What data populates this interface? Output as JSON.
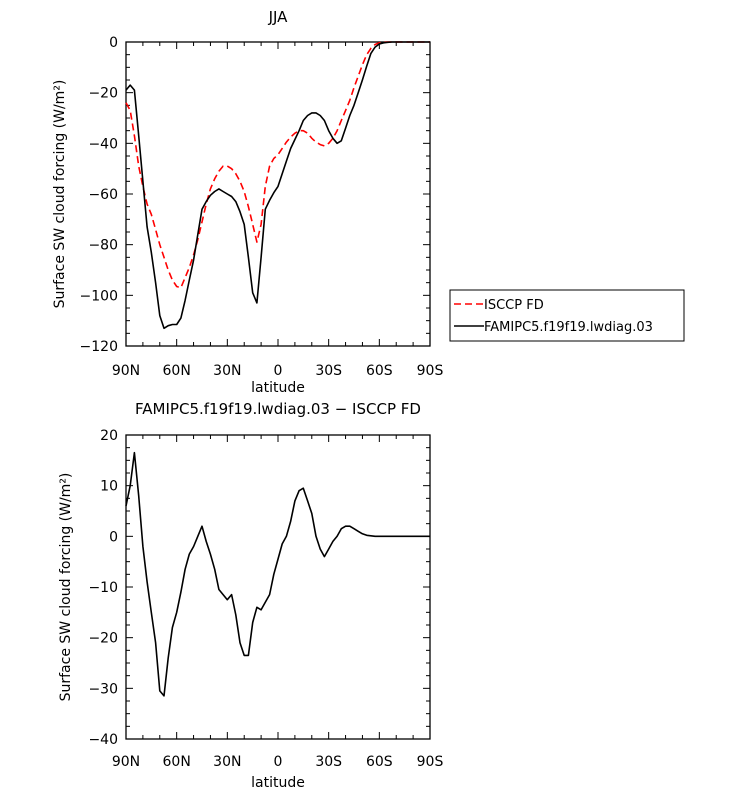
{
  "chart_data": [
    {
      "type": "line",
      "title": "JJA",
      "xlabel": "latitude",
      "ylabel": "Surface SW cloud forcing (W/m²)",
      "xlim": [
        90,
        -90
      ],
      "ylim": [
        -120,
        0
      ],
      "xtick_values": [
        90,
        60,
        30,
        0,
        -30,
        -60,
        -90
      ],
      "xtick_labels": [
        "90N",
        "60N",
        "30N",
        "0",
        "30S",
        "60S",
        "90S"
      ],
      "ytick_values": [
        0,
        -20,
        -40,
        -60,
        -80,
        -100,
        -120
      ],
      "ytick_labels": [
        "0",
        "−20",
        "−40",
        "−60",
        "−80",
        "−100",
        "−120"
      ],
      "legend_position": "right, outside",
      "series": [
        {
          "name": "ISCCP FD",
          "color": "#ff0000",
          "dash": "dashed",
          "x": [
            90,
            87.5,
            85,
            82.5,
            80,
            77.5,
            75,
            72.5,
            70,
            67.5,
            65,
            62.5,
            60,
            57.5,
            55,
            52.5,
            50,
            47.5,
            45,
            42.5,
            40,
            37.5,
            35,
            32.5,
            30,
            27.5,
            25,
            22.5,
            20,
            17.5,
            15,
            12.5,
            10,
            7.5,
            5,
            2.5,
            0,
            -2.5,
            -5,
            -7.5,
            -10,
            -12.5,
            -15,
            -17.5,
            -20,
            -22.5,
            -25,
            -27.5,
            -30,
            -32.5,
            -35,
            -37.5,
            -40,
            -42.5,
            -45,
            -47.5,
            -50,
            -52.5,
            -55,
            -57.5,
            -60,
            -62.5,
            -65,
            -67.5,
            -70,
            -72.5,
            -75,
            -77.5,
            -80,
            -82.5,
            -85,
            -87.5,
            -90
          ],
          "y": [
            -24,
            -27,
            -37,
            -49,
            -57,
            -64,
            -68,
            -74,
            -80,
            -85,
            -90,
            -94,
            -96.5,
            -97,
            -93,
            -89,
            -84,
            -78,
            -71,
            -64,
            -58,
            -54,
            -51,
            -49,
            -49,
            -50,
            -52,
            -55,
            -59,
            -65,
            -72,
            -79,
            -72,
            -57,
            -49,
            -46,
            -44.5,
            -42,
            -39.5,
            -37.5,
            -36,
            -35,
            -35,
            -36,
            -38,
            -39.5,
            -40.5,
            -41,
            -40,
            -38,
            -35,
            -31,
            -27,
            -23,
            -18,
            -13.5,
            -9,
            -5,
            -2.5,
            -1,
            -0.3,
            -0.1,
            0,
            0,
            0,
            0,
            0,
            0,
            0,
            0,
            0,
            0,
            0
          ]
        },
        {
          "name": "FAMIPC5.f19f19.lwdiag.03",
          "color": "#000000",
          "dash": "solid",
          "x": [
            90,
            87.5,
            85,
            82.5,
            80,
            77.5,
            75,
            72.5,
            70,
            67.5,
            65,
            62.5,
            60,
            57.5,
            55,
            52.5,
            50,
            47.5,
            45,
            42.5,
            40,
            37.5,
            35,
            32.5,
            30,
            27.5,
            25,
            22.5,
            20,
            17.5,
            15,
            12.5,
            10,
            7.5,
            5,
            2.5,
            0,
            -2.5,
            -5,
            -7.5,
            -10,
            -12.5,
            -15,
            -17.5,
            -20,
            -22.5,
            -25,
            -27.5,
            -30,
            -32.5,
            -35,
            -37.5,
            -40,
            -42.5,
            -45,
            -47.5,
            -50,
            -52.5,
            -55,
            -57.5,
            -60,
            -62.5,
            -65,
            -67.5,
            -70,
            -72.5,
            -75,
            -77.5,
            -80,
            -82.5,
            -85,
            -87.5,
            -90
          ],
          "y": [
            -19,
            -17,
            -19,
            -37,
            -55,
            -73,
            -83,
            -95,
            -108,
            -113,
            -112,
            -111.5,
            -111.5,
            -109,
            -102,
            -94,
            -86,
            -76,
            -66,
            -63,
            -60.5,
            -59,
            -58,
            -59,
            -60,
            -61,
            -63,
            -67,
            -72,
            -85,
            -99,
            -103,
            -85,
            -66,
            -62.5,
            -59.5,
            -57,
            -52,
            -47,
            -42,
            -38.5,
            -35,
            -31,
            -29,
            -28,
            -28,
            -29,
            -31,
            -35,
            -38,
            -40,
            -39,
            -34,
            -29,
            -25,
            -20,
            -15,
            -9.5,
            -4.5,
            -2,
            -0.8,
            -0.3,
            -0.1,
            0,
            0,
            0,
            0,
            0,
            0,
            0,
            0,
            0,
            0
          ]
        }
      ]
    },
    {
      "type": "line",
      "title": "FAMIPC5.f19f19.lwdiag.03 − ISCCP FD",
      "xlabel": "latitude",
      "ylabel": "Surface SW cloud forcing (W/m²)",
      "xlim": [
        90,
        -90
      ],
      "ylim": [
        -40,
        20
      ],
      "xtick_values": [
        90,
        60,
        30,
        0,
        -30,
        -60,
        -90
      ],
      "xtick_labels": [
        "90N",
        "60N",
        "30N",
        "0",
        "30S",
        "60S",
        "90S"
      ],
      "ytick_values": [
        20,
        10,
        0,
        -10,
        -20,
        -30,
        -40
      ],
      "ytick_labels": [
        "20",
        "10",
        "0",
        "−10",
        "−20",
        "−30",
        "−40"
      ],
      "series": [
        {
          "color": "#000000",
          "dash": "solid",
          "x": [
            90,
            87.5,
            85,
            82.5,
            80,
            77.5,
            75,
            72.5,
            70,
            67.5,
            65,
            62.5,
            60,
            57.5,
            55,
            52.5,
            50,
            47.5,
            45,
            42.5,
            40,
            37.5,
            35,
            32.5,
            30,
            27.5,
            25,
            22.5,
            20,
            17.5,
            15,
            12.5,
            10,
            7.5,
            5,
            2.5,
            0,
            -2.5,
            -5,
            -7.5,
            -10,
            -12.5,
            -15,
            -17.5,
            -20,
            -22.5,
            -25,
            -27.5,
            -30,
            -32.5,
            -35,
            -37.5,
            -40,
            -42.5,
            -45,
            -47.5,
            -50,
            -52.5,
            -55,
            -57.5,
            -60,
            -62.5,
            -65,
            -67.5,
            -70,
            -72.5,
            -75,
            -77.5,
            -80,
            -82.5,
            -85,
            -87.5,
            -90
          ],
          "y": [
            6,
            10,
            16.5,
            8,
            -2,
            -9,
            -15,
            -21,
            -30.5,
            -31.5,
            -24,
            -18,
            -15,
            -11,
            -6.5,
            -3.5,
            -2,
            0,
            2,
            -1,
            -3.5,
            -6.5,
            -10.5,
            -11.5,
            -12.5,
            -11.5,
            -15.5,
            -21,
            -23.5,
            -23.5,
            -17,
            -14,
            -14.5,
            -13,
            -11.5,
            -7.5,
            -4.5,
            -1.5,
            0,
            3,
            7,
            9,
            9.5,
            7,
            4.5,
            0,
            -2.5,
            -4,
            -2.5,
            -1,
            0,
            1.5,
            2,
            2,
            1.5,
            1,
            0.5,
            0.2,
            0.1,
            0,
            0,
            0,
            0,
            0,
            0,
            0,
            0,
            0,
            0,
            0,
            0,
            0,
            0
          ]
        }
      ]
    }
  ]
}
